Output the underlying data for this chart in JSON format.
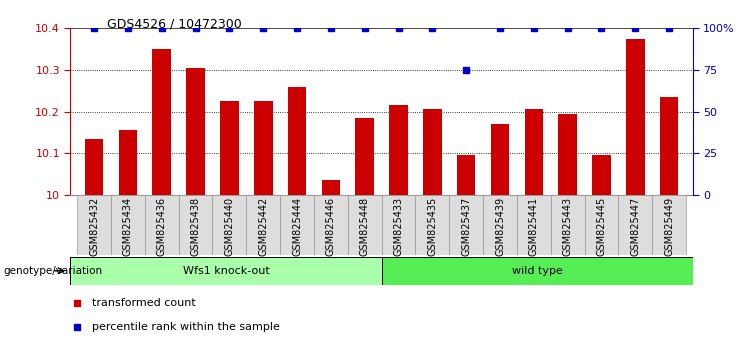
{
  "title": "GDS4526 / 10472300",
  "samples": [
    "GSM825432",
    "GSM825434",
    "GSM825436",
    "GSM825438",
    "GSM825440",
    "GSM825442",
    "GSM825444",
    "GSM825446",
    "GSM825448",
    "GSM825433",
    "GSM825435",
    "GSM825437",
    "GSM825439",
    "GSM825441",
    "GSM825443",
    "GSM825445",
    "GSM825447",
    "GSM825449"
  ],
  "bar_values": [
    10.135,
    10.155,
    10.35,
    10.305,
    10.225,
    10.225,
    10.26,
    10.035,
    10.185,
    10.215,
    10.205,
    10.095,
    10.17,
    10.205,
    10.195,
    10.095,
    10.375,
    10.235
  ],
  "percentile_values": [
    100,
    100,
    100,
    100,
    100,
    100,
    100,
    100,
    100,
    100,
    100,
    75,
    100,
    100,
    100,
    100,
    100,
    100
  ],
  "bar_color": "#cc0000",
  "dot_color": "#0000cc",
  "ylim_left": [
    10.0,
    10.4
  ],
  "ylim_right": [
    0,
    100
  ],
  "yticks_left": [
    10.0,
    10.1,
    10.2,
    10.3,
    10.4
  ],
  "ytick_labels_left": [
    "10",
    "10.1",
    "10.2",
    "10.3",
    "10.4"
  ],
  "yticks_right": [
    0,
    25,
    50,
    75,
    100
  ],
  "ylabel_right_labels": [
    "0",
    "25",
    "50",
    "75",
    "100%"
  ],
  "gridlines": [
    10.1,
    10.2,
    10.3
  ],
  "group1_label": "Wfs1 knock-out",
  "group2_label": "wild type",
  "group1_color": "#aaffaa",
  "group2_color": "#55ee55",
  "group1_count": 9,
  "group2_count": 9,
  "genotype_label": "genotype/variation",
  "legend_bar_label": "transformed count",
  "legend_dot_label": "percentile rank within the sample",
  "xtick_bg": "#dddddd",
  "plot_bg": "#ffffff",
  "bar_width": 0.55
}
